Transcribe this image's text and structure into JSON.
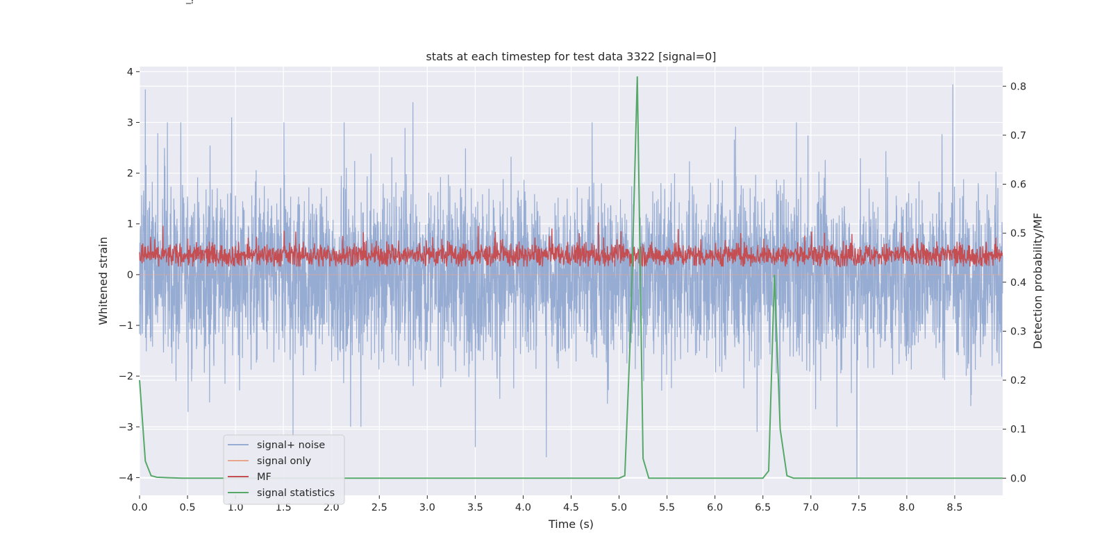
{
  "corner_text": "_ļ",
  "chart_data": {
    "type": "line",
    "title": "stats at each timestep for test data 3322 [signal=0]",
    "xlabel": "Time (s)",
    "ylabel": "Whitened strain",
    "y2label": "Detection probability/MF",
    "xlim": [
      0.0,
      9.0
    ],
    "ylim": [
      -4.35,
      4.1
    ],
    "y2lim": [
      -0.035,
      0.84
    ],
    "xticks": [
      "0.0",
      "0.5",
      "1.0",
      "1.5",
      "2.0",
      "2.5",
      "3.0",
      "3.5",
      "4.0",
      "4.5",
      "5.0",
      "5.5",
      "6.0",
      "6.5",
      "7.0",
      "7.5",
      "8.0",
      "8.5"
    ],
    "yticks": [
      "4",
      "3",
      "2",
      "1",
      "0",
      "−1",
      "−2",
      "−3",
      "−4"
    ],
    "y2ticks": [
      "0.8",
      "0.7",
      "0.6",
      "0.5",
      "0.4",
      "0.3",
      "0.2",
      "0.1",
      "0.0"
    ],
    "grid": true,
    "legend_position": "lower-left",
    "series": [
      {
        "name": "signal+ noise",
        "axis": "left",
        "color": "#8fa6cf",
        "style": "dense noise, roughly between -2 and 2 with spikes to about ±3.7",
        "peaks": [
          [
            0.06,
            3.65
          ],
          [
            0.96,
            3.1
          ],
          [
            2.85,
            3.4
          ],
          [
            4.24,
            -3.6
          ],
          [
            3.5,
            -3.4
          ],
          [
            6.44,
            -3.1
          ],
          [
            7.48,
            -4.0
          ],
          [
            8.48,
            3.75
          ],
          [
            1.6,
            -3.2
          ]
        ]
      },
      {
        "name": "signal only",
        "axis": "left",
        "color": "#e8a58a",
        "style": "flat at zero (hidden under noise)"
      },
      {
        "name": "MF",
        "axis": "right",
        "color": "#c44e52",
        "style": "dense noise around 0.45 on the right axis, range roughly 0.43 to 0.52"
      },
      {
        "name": "signal statistics",
        "axis": "right",
        "color": "#55a868",
        "x": [
          0.0,
          0.06,
          0.12,
          0.18,
          0.3,
          0.45,
          0.8,
          1.5,
          3.0,
          4.5,
          5.0,
          5.06,
          5.12,
          5.19,
          5.25,
          5.31,
          5.5,
          6.0,
          6.5,
          6.56,
          6.62,
          6.68,
          6.75,
          6.82,
          7.2,
          8.0,
          9.0
        ],
        "y": [
          0.2,
          0.035,
          0.005,
          0.002,
          0.001,
          0.0,
          0.0,
          0.0,
          0.0,
          0.0,
          0.0,
          0.005,
          0.3,
          0.82,
          0.04,
          0.0,
          0.0,
          0.0,
          0.0,
          0.015,
          0.415,
          0.1,
          0.005,
          0.0,
          0.0,
          0.0,
          0.0
        ]
      }
    ]
  }
}
